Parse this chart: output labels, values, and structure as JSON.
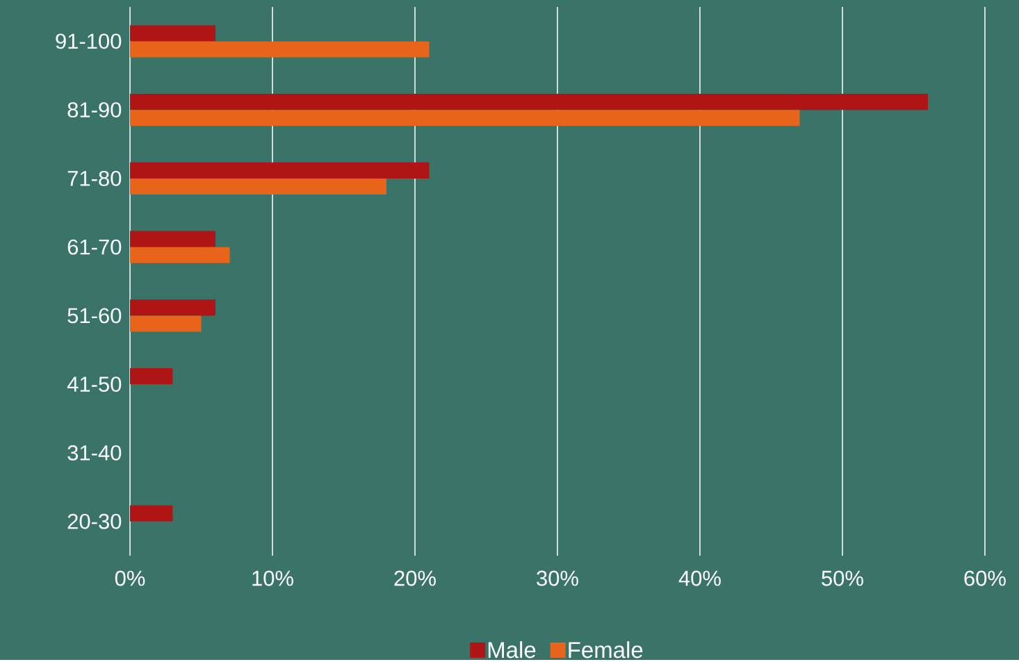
{
  "chart_data": {
    "type": "bar",
    "orientation": "horizontal",
    "categories": [
      "91-100",
      "81-90",
      "71-80",
      "61-70",
      "51-60",
      "41-50",
      "31-40",
      "20-30"
    ],
    "series": [
      {
        "name": "Male",
        "color": "#b01515",
        "values": [
          6,
          56,
          21,
          6,
          6,
          3,
          0,
          3
        ]
      },
      {
        "name": "Female",
        "color": "#e8641a",
        "values": [
          21,
          47,
          18,
          7,
          5,
          0,
          0,
          0
        ]
      }
    ],
    "xlim": [
      0,
      60
    ],
    "xticks": [
      {
        "value": 0,
        "label": "0%"
      },
      {
        "value": 10,
        "label": "10%"
      },
      {
        "value": 20,
        "label": "20%"
      },
      {
        "value": 30,
        "label": "30%"
      },
      {
        "value": 40,
        "label": "40%"
      },
      {
        "value": 50,
        "label": "50%"
      },
      {
        "value": 60,
        "label": "60%"
      }
    ],
    "grid": "x",
    "legend": "bottom"
  }
}
